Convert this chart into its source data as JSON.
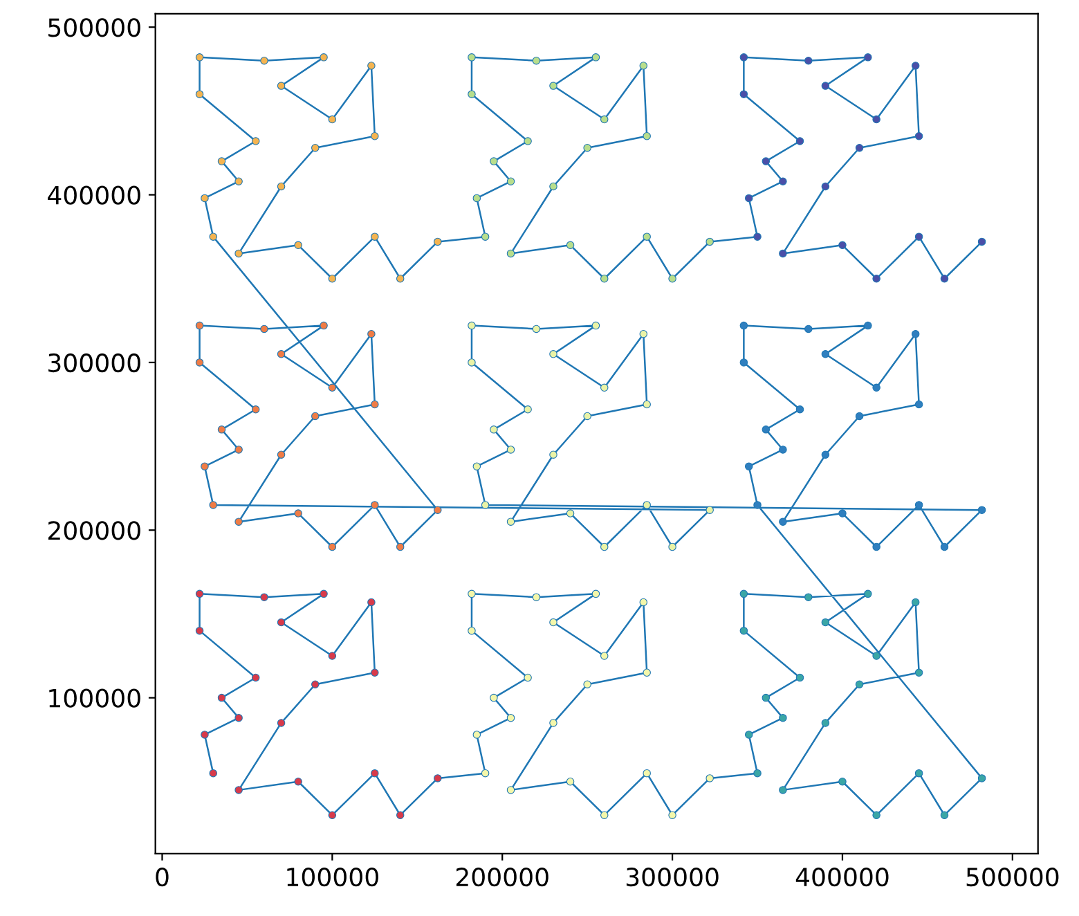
{
  "chart_data": {
    "type": "scatter",
    "xlim": [
      -4000,
      515000
    ],
    "ylim": [
      7000,
      508000
    ],
    "xticks": [
      0,
      100000,
      200000,
      300000,
      400000,
      500000
    ],
    "yticks": [
      100000,
      200000,
      300000,
      400000,
      500000
    ],
    "grid": false,
    "legend": false,
    "marker": "circle",
    "series": [
      {
        "type": "line",
        "color": "#1f77b4",
        "marker": "none",
        "line_style": "solid",
        "x": [
          30000,
          25000,
          45000,
          35000,
          55000,
          22000,
          22000,
          60000,
          95000,
          70000,
          100000,
          123000,
          125000,
          90000,
          70000,
          45000,
          80000,
          100000,
          125000,
          140000,
          162000,
          190000,
          185000,
          205000,
          195000,
          215000,
          182000,
          182000,
          220000,
          255000,
          230000,
          260000,
          283000,
          285000,
          250000,
          230000,
          205000,
          240000,
          260000,
          285000,
          300000,
          322000,
          350000,
          345000,
          365000,
          355000,
          375000,
          342000,
          342000,
          380000,
          415000,
          390000,
          420000,
          443000,
          445000,
          410000,
          390000,
          365000,
          400000,
          420000,
          445000,
          460000,
          482000,
          350000,
          345000,
          365000,
          355000,
          375000,
          342000,
          342000,
          380000,
          415000,
          390000,
          420000,
          443000,
          445000,
          410000,
          390000,
          365000,
          400000,
          420000,
          445000,
          460000,
          482000,
          190000,
          185000,
          205000,
          195000,
          215000,
          182000,
          182000,
          220000,
          255000,
          230000,
          260000,
          283000,
          285000,
          250000,
          230000,
          205000,
          240000,
          260000,
          285000,
          300000,
          322000,
          30000,
          25000,
          45000,
          35000,
          55000,
          22000,
          22000,
          60000,
          95000,
          70000,
          100000,
          123000,
          125000,
          90000,
          70000,
          45000,
          80000,
          100000,
          125000,
          140000,
          162000,
          30000,
          25000,
          45000,
          35000,
          55000,
          22000,
          22000,
          60000,
          95000,
          70000,
          100000,
          123000,
          125000,
          90000,
          70000,
          45000,
          80000,
          100000,
          125000,
          140000,
          162000,
          190000,
          185000,
          205000,
          195000,
          215000,
          182000,
          182000,
          220000,
          255000,
          230000,
          260000,
          283000,
          285000,
          250000,
          230000,
          205000,
          240000,
          260000,
          285000,
          300000,
          322000,
          350000,
          345000,
          365000,
          355000,
          375000,
          342000,
          342000,
          380000,
          415000,
          390000,
          420000,
          443000,
          445000,
          410000,
          390000,
          365000,
          400000,
          420000,
          445000,
          460000,
          482000
        ],
        "values": [
          55000,
          78000,
          88000,
          100000,
          112000,
          140000,
          162000,
          160000,
          162000,
          145000,
          125000,
          157000,
          115000,
          108000,
          85000,
          45000,
          50000,
          30000,
          55000,
          30000,
          52000,
          55000,
          78000,
          88000,
          100000,
          112000,
          140000,
          162000,
          160000,
          162000,
          145000,
          125000,
          157000,
          115000,
          108000,
          85000,
          45000,
          50000,
          30000,
          55000,
          30000,
          52000,
          55000,
          78000,
          88000,
          100000,
          112000,
          140000,
          162000,
          160000,
          162000,
          145000,
          125000,
          157000,
          115000,
          108000,
          85000,
          45000,
          50000,
          30000,
          55000,
          30000,
          52000,
          215000,
          238000,
          248000,
          260000,
          272000,
          300000,
          322000,
          320000,
          322000,
          305000,
          285000,
          317000,
          275000,
          268000,
          245000,
          205000,
          210000,
          190000,
          215000,
          190000,
          212000,
          215000,
          238000,
          248000,
          260000,
          272000,
          300000,
          322000,
          320000,
          322000,
          305000,
          285000,
          317000,
          275000,
          268000,
          245000,
          205000,
          210000,
          190000,
          215000,
          190000,
          212000,
          215000,
          238000,
          248000,
          260000,
          272000,
          300000,
          322000,
          320000,
          322000,
          305000,
          285000,
          317000,
          275000,
          268000,
          245000,
          205000,
          210000,
          190000,
          215000,
          190000,
          212000,
          375000,
          398000,
          408000,
          420000,
          432000,
          460000,
          482000,
          480000,
          482000,
          465000,
          445000,
          477000,
          435000,
          428000,
          405000,
          365000,
          370000,
          350000,
          375000,
          350000,
          372000,
          375000,
          398000,
          408000,
          420000,
          432000,
          460000,
          482000,
          480000,
          482000,
          465000,
          445000,
          477000,
          435000,
          428000,
          405000,
          365000,
          370000,
          350000,
          375000,
          350000,
          372000,
          375000,
          398000,
          408000,
          420000,
          432000,
          460000,
          482000,
          480000,
          482000,
          465000,
          445000,
          477000,
          435000,
          428000,
          405000,
          365000,
          370000,
          350000,
          375000,
          350000,
          372000
        ]
      },
      {
        "color": "#d83a4a",
        "x": [
          30000,
          25000,
          45000,
          35000,
          55000,
          22000,
          22000,
          60000,
          95000,
          70000,
          100000,
          123000,
          125000,
          90000,
          70000,
          45000,
          80000,
          100000,
          125000,
          140000,
          162000
        ],
        "values": [
          55000,
          78000,
          88000,
          100000,
          112000,
          140000,
          162000,
          160000,
          162000,
          145000,
          125000,
          157000,
          115000,
          108000,
          85000,
          45000,
          50000,
          30000,
          55000,
          30000,
          52000
        ]
      },
      {
        "color": "#f4f7aa",
        "x": [
          190000,
          185000,
          205000,
          195000,
          215000,
          182000,
          182000,
          220000,
          255000,
          230000,
          260000,
          283000,
          285000,
          250000,
          230000,
          205000,
          240000,
          260000,
          285000,
          300000,
          322000
        ],
        "values": [
          55000,
          78000,
          88000,
          100000,
          112000,
          140000,
          162000,
          160000,
          162000,
          145000,
          125000,
          157000,
          115000,
          108000,
          85000,
          45000,
          50000,
          30000,
          55000,
          30000,
          52000
        ]
      },
      {
        "color": "#3aa6a6",
        "x": [
          350000,
          345000,
          365000,
          355000,
          375000,
          342000,
          342000,
          380000,
          415000,
          390000,
          420000,
          443000,
          445000,
          410000,
          390000,
          365000,
          400000,
          420000,
          445000,
          460000,
          482000
        ],
        "values": [
          55000,
          78000,
          88000,
          100000,
          112000,
          140000,
          162000,
          160000,
          162000,
          145000,
          125000,
          157000,
          115000,
          108000,
          85000,
          45000,
          50000,
          30000,
          55000,
          30000,
          52000
        ]
      },
      {
        "color": "#2f7fbf",
        "x": [
          350000,
          345000,
          365000,
          355000,
          375000,
          342000,
          342000,
          380000,
          415000,
          390000,
          420000,
          443000,
          445000,
          410000,
          390000,
          365000,
          400000,
          420000,
          445000,
          460000,
          482000
        ],
        "values": [
          215000,
          238000,
          248000,
          260000,
          272000,
          300000,
          322000,
          320000,
          322000,
          305000,
          285000,
          317000,
          275000,
          268000,
          245000,
          205000,
          210000,
          190000,
          215000,
          190000,
          212000
        ]
      },
      {
        "color": "#eaf3a6",
        "x": [
          190000,
          185000,
          205000,
          195000,
          215000,
          182000,
          182000,
          220000,
          255000,
          230000,
          260000,
          283000,
          285000,
          250000,
          230000,
          205000,
          240000,
          260000,
          285000,
          300000,
          322000
        ],
        "values": [
          215000,
          238000,
          248000,
          260000,
          272000,
          300000,
          322000,
          320000,
          322000,
          305000,
          285000,
          317000,
          275000,
          268000,
          245000,
          205000,
          210000,
          190000,
          215000,
          190000,
          212000
        ]
      },
      {
        "color": "#f07c45",
        "x": [
          30000,
          25000,
          45000,
          35000,
          55000,
          22000,
          22000,
          60000,
          95000,
          70000,
          100000,
          123000,
          125000,
          90000,
          70000,
          45000,
          80000,
          100000,
          125000,
          140000,
          162000
        ],
        "values": [
          215000,
          238000,
          248000,
          260000,
          272000,
          300000,
          322000,
          320000,
          322000,
          305000,
          285000,
          317000,
          275000,
          268000,
          245000,
          205000,
          210000,
          190000,
          215000,
          190000,
          212000
        ]
      },
      {
        "color": "#f5b450",
        "x": [
          30000,
          25000,
          45000,
          35000,
          55000,
          22000,
          22000,
          60000,
          95000,
          70000,
          100000,
          123000,
          125000,
          90000,
          70000,
          45000,
          80000,
          100000,
          125000,
          140000,
          162000
        ],
        "values": [
          375000,
          398000,
          408000,
          420000,
          432000,
          460000,
          482000,
          480000,
          482000,
          465000,
          445000,
          477000,
          435000,
          428000,
          405000,
          365000,
          370000,
          350000,
          375000,
          350000,
          372000
        ]
      },
      {
        "color": "#b8de8c",
        "x": [
          190000,
          185000,
          205000,
          195000,
          215000,
          182000,
          182000,
          220000,
          255000,
          230000,
          260000,
          283000,
          285000,
          250000,
          230000,
          205000,
          240000,
          260000,
          285000,
          300000,
          322000
        ],
        "values": [
          375000,
          398000,
          408000,
          420000,
          432000,
          460000,
          482000,
          480000,
          482000,
          465000,
          445000,
          477000,
          435000,
          428000,
          405000,
          365000,
          370000,
          350000,
          375000,
          350000,
          372000
        ]
      },
      {
        "color": "#4a4fa8",
        "x": [
          350000,
          345000,
          365000,
          355000,
          375000,
          342000,
          342000,
          380000,
          415000,
          390000,
          420000,
          443000,
          445000,
          410000,
          390000,
          365000,
          400000,
          420000,
          445000,
          460000,
          482000
        ],
        "values": [
          375000,
          398000,
          408000,
          420000,
          432000,
          460000,
          482000,
          480000,
          482000,
          465000,
          445000,
          477000,
          435000,
          428000,
          405000,
          365000,
          370000,
          350000,
          375000,
          350000,
          372000
        ]
      }
    ]
  }
}
